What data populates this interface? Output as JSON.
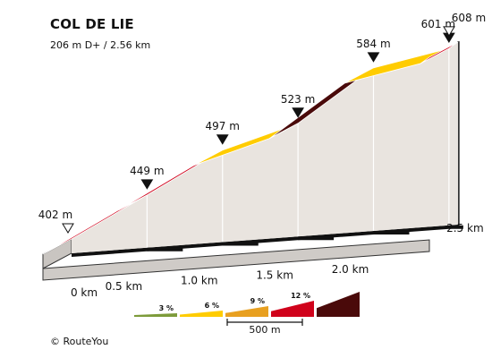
{
  "title": "COL DE LIE",
  "subtitle": "206 m D+ / 2.56 km",
  "credit": "© RouteYou",
  "colors": {
    "side": "#e9e4df",
    "dark_base": "#111111",
    "grade_3": "#7d9b3a",
    "grade_6": "#ffcc00",
    "grade_9": "#e8a020",
    "grade_12": "#d0021b",
    "grade_steep": "#4a0a0a"
  },
  "chart_data": {
    "type": "area",
    "title": "COL DE LIE",
    "xlabel": "",
    "ylabel": "",
    "x_unit": "km",
    "xlim": [
      0,
      2.56
    ],
    "x_ticks": [
      "0 km",
      "0.5 km",
      "1.0 km",
      "1.5 km",
      "2.0 km",
      "2.5 km"
    ],
    "points": [
      {
        "x": 0.0,
        "y": 402,
        "label": "402 m",
        "marker": "open"
      },
      {
        "x": 0.5,
        "y": 449,
        "label": "449 m",
        "marker": "filled"
      },
      {
        "x": 1.0,
        "y": 497,
        "label": "497 m",
        "marker": "filled"
      },
      {
        "x": 1.5,
        "y": 523,
        "label": "523 m",
        "marker": "filled"
      },
      {
        "x": 2.0,
        "y": 584,
        "label": "584 m",
        "marker": "filled"
      },
      {
        "x": 2.5,
        "y": 601,
        "label": "601 m",
        "marker": "filled"
      },
      {
        "x": 2.56,
        "y": 608,
        "label": "608 m",
        "marker": "open"
      }
    ],
    "segments": [
      {
        "from": 0.0,
        "to": 0.5,
        "color": "#d0021b"
      },
      {
        "from": 0.5,
        "to": 1.0,
        "color": "#d0021b"
      },
      {
        "from": 1.0,
        "to": 1.5,
        "color": "#ffcc00"
      },
      {
        "from": 1.5,
        "to": 2.0,
        "color": "#4a0a0a"
      },
      {
        "from": 2.0,
        "to": 2.5,
        "color": "#ffcc00"
      },
      {
        "from": 2.5,
        "to": 2.56,
        "color": "#d0021b"
      }
    ],
    "legend": {
      "grades": [
        {
          "label": "3 %",
          "color": "#7d9b3a"
        },
        {
          "label": "6 %",
          "color": "#ffcc00"
        },
        {
          "label": "9 %",
          "color": "#e8a020"
        },
        {
          "label": "12 %",
          "color": "#d0021b"
        },
        {
          "label": "",
          "color": "#4a0a0a"
        }
      ],
      "scale_label": "500 m"
    }
  }
}
